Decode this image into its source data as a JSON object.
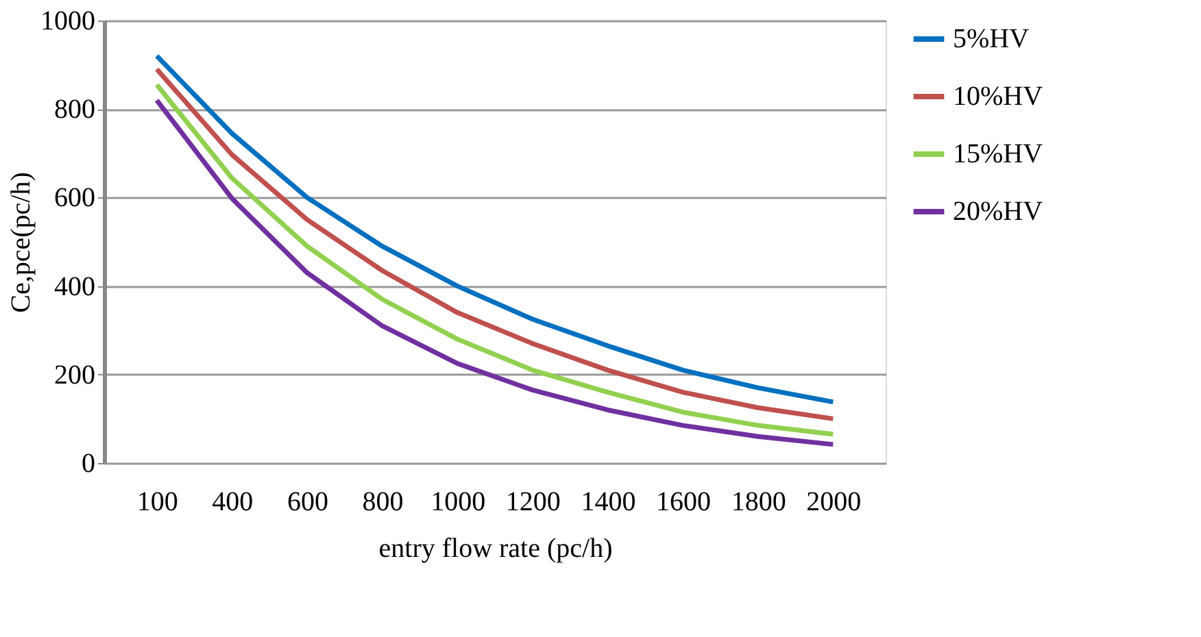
{
  "chart_data": {
    "type": "line",
    "xlabel": "entry flow rate (pc/h)",
    "ylabel": "Ce,pce(pc/h)",
    "categories": [
      "100",
      "400",
      "600",
      "800",
      "1000",
      "1200",
      "1400",
      "1600",
      "1800",
      "2000"
    ],
    "series": [
      {
        "name": "5%HV",
        "color": "#0070c0",
        "values": [
          920,
          745,
          600,
          490,
          400,
          325,
          265,
          210,
          170,
          138
        ]
      },
      {
        "name": "10%HV",
        "color": "#c0504d",
        "values": [
          890,
          697,
          550,
          435,
          340,
          270,
          210,
          160,
          125,
          100
        ]
      },
      {
        "name": "15%HV",
        "color": "#92d050",
        "values": [
          855,
          644,
          490,
          370,
          280,
          210,
          160,
          115,
          85,
          65
        ]
      },
      {
        "name": "20%HV",
        "color": "#7030a0",
        "values": [
          820,
          598,
          430,
          310,
          225,
          165,
          120,
          85,
          60,
          42
        ]
      }
    ],
    "ylim": [
      0,
      1000
    ],
    "yticks": [
      0,
      200,
      400,
      600,
      800,
      1000
    ],
    "grid": "y",
    "legend": "right",
    "marker": "none",
    "line_style": "solid"
  }
}
